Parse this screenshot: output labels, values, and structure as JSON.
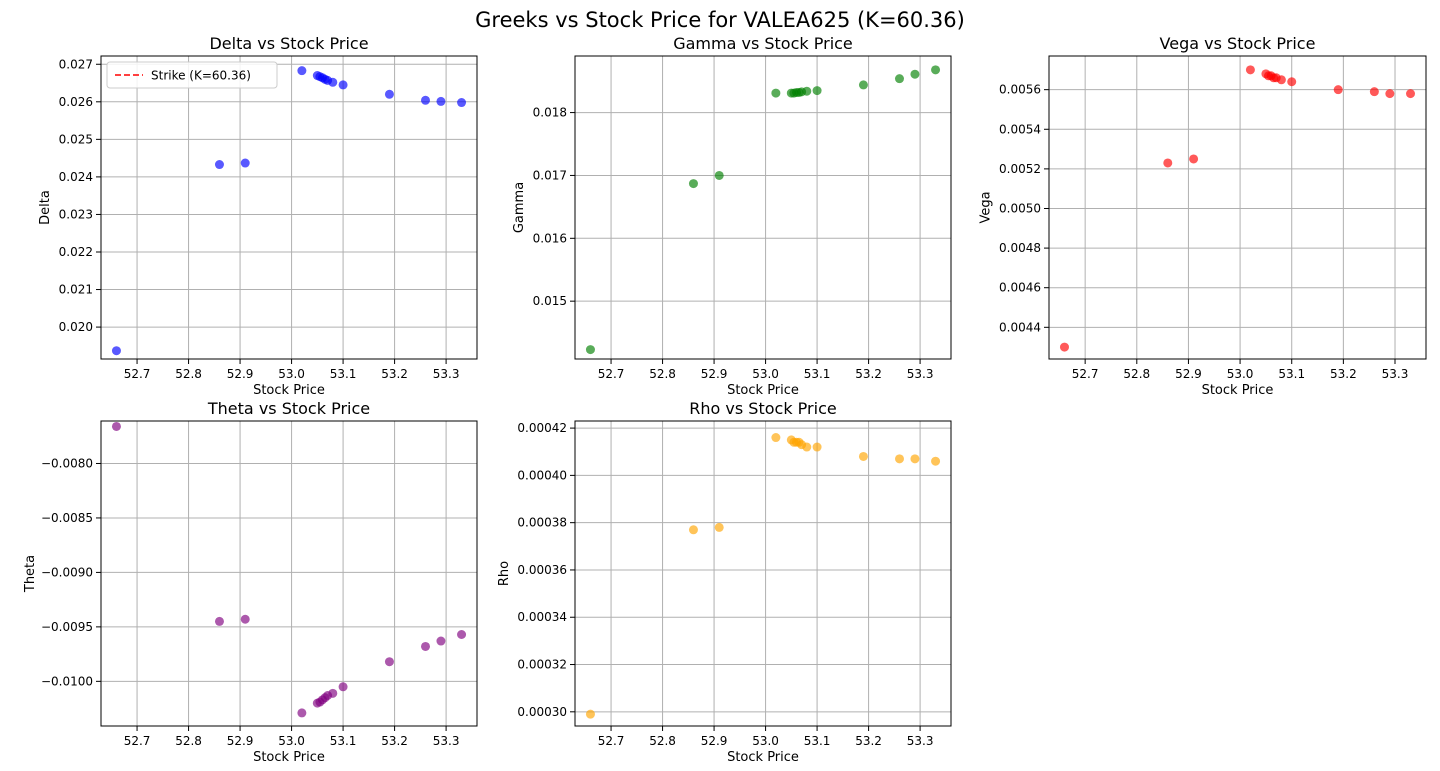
{
  "figure": {
    "title": "Greeks vs Stock Price for VALEA625 (K=60.36)"
  },
  "chart_data": [
    {
      "type": "scatter",
      "title": "Delta vs Stock Price",
      "xlabel": "Stock Price",
      "ylabel": "Delta",
      "xlim": [
        52.63,
        53.36
      ],
      "ylim": [
        0.01915,
        0.02722
      ],
      "xticks": [
        "52.7",
        "52.8",
        "52.9",
        "53.0",
        "53.1",
        "53.2",
        "53.3"
      ],
      "yticks": [
        "0.020",
        "0.021",
        "0.022",
        "0.023",
        "0.024",
        "0.025",
        "0.026",
        "0.027"
      ],
      "grid": true,
      "legend": {
        "position": "upper-left",
        "entries": [
          {
            "label": "Strike (K=60.36)",
            "style": "dashed",
            "color": "#ff0000"
          }
        ]
      },
      "color": "#0000ff",
      "series": [
        {
          "x": [
            52.66,
            52.86,
            52.91,
            53.02,
            53.05,
            53.055,
            53.06,
            53.065,
            53.07,
            53.08,
            53.1,
            53.19,
            53.26,
            53.29,
            53.33
          ],
          "y": [
            0.01937,
            0.02433,
            0.02437,
            0.02683,
            0.0267,
            0.02667,
            0.02664,
            0.0266,
            0.02657,
            0.02652,
            0.02645,
            0.0262,
            0.02604,
            0.02601,
            0.02598
          ]
        }
      ]
    },
    {
      "type": "scatter",
      "title": "Gamma vs Stock Price",
      "xlabel": "Stock Price",
      "ylabel": "Gamma",
      "xlim": [
        52.63,
        53.36
      ],
      "ylim": [
        0.01408,
        0.0189
      ],
      "xticks": [
        "52.7",
        "52.8",
        "52.9",
        "53.0",
        "53.1",
        "53.2",
        "53.3"
      ],
      "yticks": [
        "0.015",
        "0.016",
        "0.017",
        "0.018"
      ],
      "grid": true,
      "color": "#008000",
      "series": [
        {
          "x": [
            52.66,
            52.86,
            52.91,
            53.02,
            53.05,
            53.055,
            53.06,
            53.065,
            53.07,
            53.08,
            53.1,
            53.19,
            53.26,
            53.29,
            53.33
          ],
          "y": [
            0.01423,
            0.01687,
            0.017,
            0.01831,
            0.01831,
            0.01831,
            0.01832,
            0.01832,
            0.01833,
            0.01834,
            0.01835,
            0.01844,
            0.01854,
            0.01861,
            0.01868
          ]
        }
      ]
    },
    {
      "type": "scatter",
      "title": "Vega vs Stock Price",
      "xlabel": "Stock Price",
      "ylabel": "Vega",
      "xlim": [
        52.63,
        53.36
      ],
      "ylim": [
        0.00424,
        0.00577
      ],
      "xticks": [
        "52.7",
        "52.8",
        "52.9",
        "53.0",
        "53.1",
        "53.2",
        "53.3"
      ],
      "yticks": [
        "0.0044",
        "0.0046",
        "0.0048",
        "0.0050",
        "0.0052",
        "0.0054",
        "0.0056"
      ],
      "grid": true,
      "color": "#ff0000",
      "series": [
        {
          "x": [
            52.66,
            52.86,
            52.91,
            53.02,
            53.05,
            53.055,
            53.06,
            53.065,
            53.07,
            53.08,
            53.1,
            53.19,
            53.26,
            53.29,
            53.33
          ],
          "y": [
            0.0043,
            0.00523,
            0.00525,
            0.0057,
            0.00568,
            0.00567,
            0.00567,
            0.00566,
            0.00566,
            0.00565,
            0.00564,
            0.0056,
            0.00559,
            0.00558,
            0.00558
          ]
        }
      ]
    },
    {
      "type": "scatter",
      "title": "Theta vs Stock Price",
      "xlabel": "Stock Price",
      "ylabel": "Theta",
      "xlim": [
        52.63,
        53.36
      ],
      "ylim": [
        -0.01041,
        -0.00761
      ],
      "xticks": [
        "52.7",
        "52.8",
        "52.9",
        "53.0",
        "53.1",
        "53.2",
        "53.3"
      ],
      "yticks": [
        "−0.0080",
        "−0.0085",
        "−0.0090",
        "−0.0095",
        "−0.0100"
      ],
      "grid": true,
      "color": "#800080",
      "series": [
        {
          "x": [
            52.66,
            52.86,
            52.91,
            53.02,
            53.05,
            53.055,
            53.06,
            53.065,
            53.07,
            53.08,
            53.1,
            53.19,
            53.26,
            53.29,
            53.33
          ],
          "y": [
            -0.00766,
            -0.00945,
            -0.00943,
            -0.01029,
            -0.0102,
            -0.01019,
            -0.01017,
            -0.01015,
            -0.01013,
            -0.01011,
            -0.01005,
            -0.00982,
            -0.00968,
            -0.00963,
            -0.00957
          ]
        }
      ]
    },
    {
      "type": "scatter",
      "title": "Rho vs Stock Price",
      "xlabel": "Stock Price",
      "ylabel": "Rho",
      "xlim": [
        52.63,
        53.36
      ],
      "ylim": [
        0.000294,
        0.000423
      ],
      "xticks": [
        "52.7",
        "52.8",
        "52.9",
        "53.0",
        "53.1",
        "53.2",
        "53.3"
      ],
      "yticks": [
        "0.00030",
        "0.00032",
        "0.00034",
        "0.00036",
        "0.00038",
        "0.00040",
        "0.00042"
      ],
      "grid": true,
      "color": "#ffa500",
      "series": [
        {
          "x": [
            52.66,
            52.86,
            52.91,
            53.02,
            53.05,
            53.055,
            53.06,
            53.065,
            53.07,
            53.08,
            53.1,
            53.19,
            53.26,
            53.29,
            53.33
          ],
          "y": [
            0.000299,
            0.000377,
            0.000378,
            0.000416,
            0.000415,
            0.000414,
            0.000414,
            0.000414,
            0.000413,
            0.000412,
            0.000412,
            0.000408,
            0.000407,
            0.000407,
            0.000406
          ]
        }
      ]
    }
  ]
}
